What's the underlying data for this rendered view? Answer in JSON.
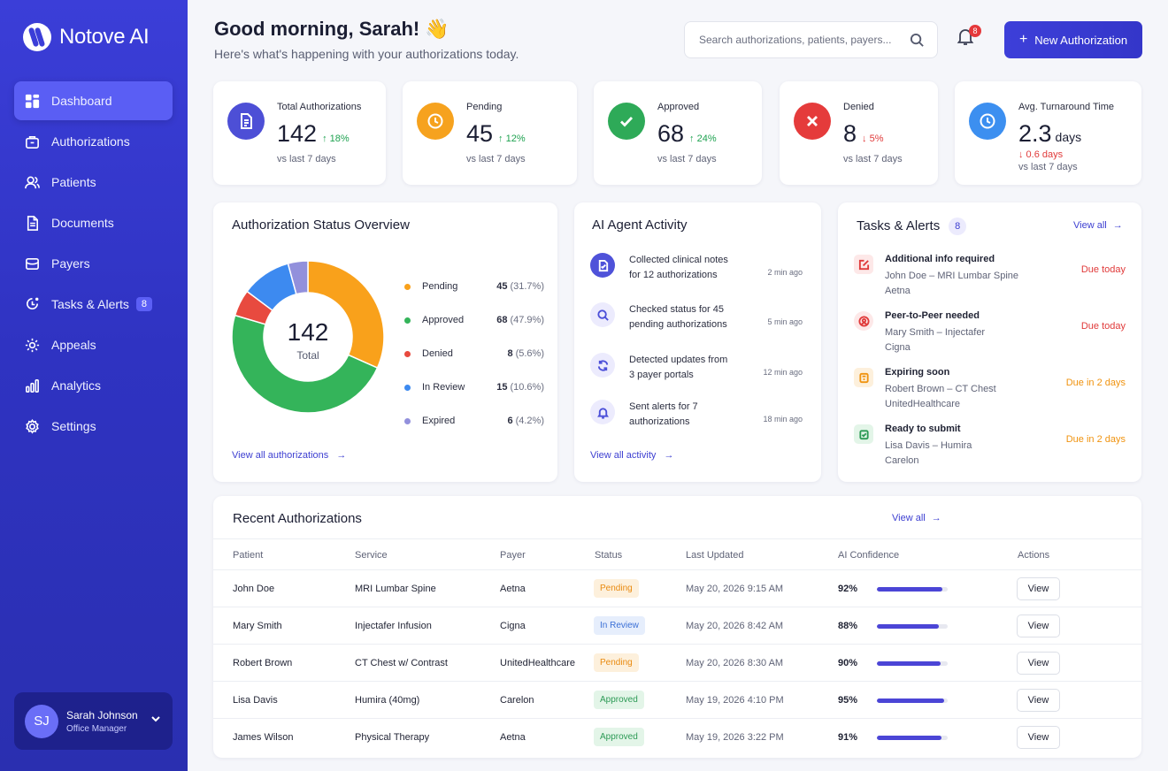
{
  "app": {
    "name": "Notove AI"
  },
  "nav": [
    {
      "label": "Dashboard",
      "icon": "dashboard-icon",
      "active": true
    },
    {
      "label": "Authorizations",
      "icon": "briefcase-icon"
    },
    {
      "label": "Patients",
      "icon": "users-icon"
    },
    {
      "label": "Documents",
      "icon": "document-icon"
    },
    {
      "label": "Payers",
      "icon": "wallet-icon"
    },
    {
      "label": "Tasks & Alerts",
      "icon": "clipboard-alert-icon",
      "badge": "8"
    },
    {
      "label": "Appeals",
      "icon": "gear-appeal-icon"
    },
    {
      "label": "Analytics",
      "icon": "bar-chart-icon"
    },
    {
      "label": "Settings",
      "icon": "settings-icon"
    }
  ],
  "user": {
    "initials": "SJ",
    "name": "Sarah Johnson",
    "role": "Office Manager"
  },
  "header": {
    "greeting": "Good morning, Sarah! 👋",
    "subtitle": "Here's what's happening with your authorizations today.",
    "search_placeholder": "Search authorizations, patients, payers...",
    "notification_count": "8",
    "new_button": "New Authorization"
  },
  "stats": [
    {
      "label": "Total Authorizations",
      "value": "142",
      "trend": "↑ 18%",
      "dir": "up",
      "foot": "vs last 7 days",
      "color": "#4d4fd6"
    },
    {
      "label": "Pending",
      "value": "45",
      "trend": "↑ 12%",
      "dir": "up",
      "foot": "vs last 7 days",
      "color": "#f6a21e"
    },
    {
      "label": "Approved",
      "value": "68",
      "trend": "↑ 24%",
      "dir": "up",
      "foot": "vs last 7 days",
      "color": "#2eaa58"
    },
    {
      "label": "Denied",
      "value": "8",
      "trend": "↓ 5%",
      "dir": "down",
      "foot": "vs last 7 days",
      "color": "#e53b3b"
    },
    {
      "label": "Avg. Turnaround Time",
      "value": "2.3",
      "unit": "days",
      "trend": "↓ 0.6 days",
      "dir": "down",
      "foot": "vs last 7 days",
      "color": "#3c8ff0"
    }
  ],
  "status_overview": {
    "title": "Authorization Status Overview",
    "total_value": "142",
    "total_label": "Total",
    "link": "View all authorizations",
    "chart_data": {
      "type": "pie",
      "categories": [
        "Pending",
        "Approved",
        "Denied",
        "In Review",
        "Expired"
      ],
      "values": [
        45,
        68,
        8,
        15,
        6
      ],
      "percent_labels": [
        "(31.7%)",
        "(47.9%)",
        "(5.6%)",
        "(10.6%)",
        "(4.2%)"
      ],
      "colors": [
        "#f9a11b",
        "#34b45a",
        "#e84a3f",
        "#3d8af0",
        "#9290dc"
      ]
    }
  },
  "activity": {
    "title": "AI Agent Activity",
    "link": "View all activity",
    "items": [
      {
        "text": "Collected clinical notes for 12 authorizations",
        "time": "2 min ago",
        "icon": "document-check-icon"
      },
      {
        "text": "Checked status for 45 pending authorizations",
        "time": "5 min ago",
        "icon": "search-icon"
      },
      {
        "text": "Detected updates from 3 payer portals",
        "time": "12 min ago",
        "icon": "refresh-icon"
      },
      {
        "text": "Sent alerts for 7 authorizations",
        "time": "18 min ago",
        "icon": "bell-icon"
      }
    ]
  },
  "tasks": {
    "title": "Tasks & Alerts",
    "count": "8",
    "link": "View all",
    "items": [
      {
        "title": "Additional info required",
        "line1": "John Doe – MRI Lumbar Spine",
        "line2": "Aetna",
        "due": "Due today",
        "tone": "red",
        "icon": "edit-icon"
      },
      {
        "title": "Peer-to-Peer needed",
        "line1": "Mary Smith – Injectafer",
        "line2": "Cigna",
        "due": "Due today",
        "tone": "red",
        "icon": "person-alert-icon"
      },
      {
        "title": "Expiring soon",
        "line1": "Robert Brown – CT Chest",
        "line2": "UnitedHealthcare",
        "due": "Due in 2 days",
        "tone": "orange",
        "icon": "hourglass-icon"
      },
      {
        "title": "Ready to submit",
        "line1": "Lisa Davis – Humira",
        "line2": "Carelon",
        "due": "Due in 2 days",
        "tone": "orange",
        "icon": "check-clipboard-icon"
      }
    ]
  },
  "recent": {
    "title": "Recent Authorizations",
    "link": "View all",
    "columns": [
      "Patient",
      "Service",
      "Payer",
      "Status",
      "Last Updated",
      "AI Confidence",
      "Actions"
    ],
    "rows": [
      {
        "patient": "John Doe",
        "service": "MRI Lumbar Spine",
        "payer": "Aetna",
        "status": "Pending",
        "updated": "May 20, 2026 9:15 AM",
        "confidence": "92%",
        "conf_value": 92,
        "action": "View"
      },
      {
        "patient": "Mary Smith",
        "service": "Injectafer Infusion",
        "payer": "Cigna",
        "status": "In Review",
        "updated": "May 20, 2026 8:42 AM",
        "confidence": "88%",
        "conf_value": 88,
        "action": "View"
      },
      {
        "patient": "Robert Brown",
        "service": "CT Chest w/ Contrast",
        "payer": "UnitedHealthcare",
        "status": "Pending",
        "updated": "May 20, 2026 8:30 AM",
        "confidence": "90%",
        "conf_value": 90,
        "action": "View"
      },
      {
        "patient": "Lisa Davis",
        "service": "Humira (40mg)",
        "payer": "Carelon",
        "status": "Approved",
        "updated": "May 19, 2026 4:10 PM",
        "confidence": "95%",
        "conf_value": 95,
        "action": "View"
      },
      {
        "patient": "James Wilson",
        "service": "Physical Therapy",
        "payer": "Aetna",
        "status": "Approved",
        "updated": "May 19, 2026 3:22 PM",
        "confidence": "91%",
        "conf_value": 91,
        "action": "View"
      }
    ]
  }
}
